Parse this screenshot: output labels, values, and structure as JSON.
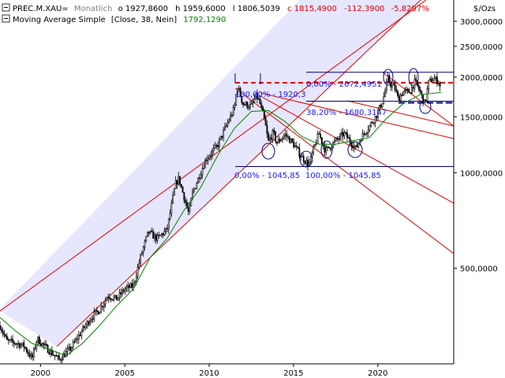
{
  "header": {
    "symbol": "PREC.M.XAU=",
    "period": "Monatlich",
    "open": "o 1927,8600",
    "high": "h 1959,6000",
    "low": "l 1806,5039",
    "close": "c 1815,4900",
    "change": "-112,3900",
    "change_pct": "-5,8297%",
    "ma_label": "Moving Average Simple",
    "ma_params": "[Close, 38, Nein]",
    "ma_value": "1792,1290"
  },
  "colors": {
    "up": "#000000",
    "down": "#000000",
    "ma": "#008000",
    "channel": "#e00000",
    "channel_fill": "#e6e6ff",
    "fib": "#1a1aff",
    "change": "#e00000",
    "ma_text": "#008000"
  },
  "chart_data": {
    "type": "candlestick",
    "title": "PREC.M.XAU= Monatlich",
    "y_unit": "$/Ozs",
    "y_scale": "log",
    "ylim": [
      250,
      3500
    ],
    "xlim": [
      1997.6,
      2024.5
    ],
    "x_ticks": [
      {
        "value": 2000,
        "label": "2000"
      },
      {
        "value": 2005,
        "label": "2005"
      },
      {
        "value": 2010,
        "label": "2010"
      },
      {
        "value": 2015,
        "label": "2015"
      },
      {
        "value": 2020,
        "label": "2020"
      }
    ],
    "y_ticks": [
      {
        "value": 3000,
        "label": "3000,0000"
      },
      {
        "value": 2500,
        "label": "2500,0000"
      },
      {
        "value": 2000,
        "label": "2000,0000"
      },
      {
        "value": 1500,
        "label": "1500,0000"
      },
      {
        "value": 1000,
        "label": "1000,0000"
      },
      {
        "value": 500,
        "label": "500,0000"
      }
    ],
    "close_anchors": [
      [
        1997.6,
        330
      ],
      [
        1998.0,
        295
      ],
      [
        1998.6,
        290
      ],
      [
        1999.0,
        285
      ],
      [
        1999.5,
        260
      ],
      [
        1999.8,
        300
      ],
      [
        2000.2,
        285
      ],
      [
        2001.1,
        258
      ],
      [
        2001.8,
        280
      ],
      [
        2002.5,
        320
      ],
      [
        2003.0,
        350
      ],
      [
        2003.5,
        370
      ],
      [
        2004.0,
        410
      ],
      [
        2004.5,
        400
      ],
      [
        2005.0,
        430
      ],
      [
        2005.5,
        440
      ],
      [
        2006.0,
        560
      ],
      [
        2006.4,
        650
      ],
      [
        2006.9,
        620
      ],
      [
        2007.5,
        660
      ],
      [
        2008.0,
        920
      ],
      [
        2008.2,
        960
      ],
      [
        2008.8,
        740
      ],
      [
        2009.0,
        860
      ],
      [
        2009.8,
        1100
      ],
      [
        2010.5,
        1220
      ],
      [
        2011.0,
        1400
      ],
      [
        2011.5,
        1600
      ],
      [
        2011.67,
        1880
      ],
      [
        2012.0,
        1650
      ],
      [
        2012.5,
        1620
      ],
      [
        2012.8,
        1750
      ],
      [
        2013.0,
        1660
      ],
      [
        2013.3,
        1450
      ],
      [
        2013.5,
        1250
      ],
      [
        2013.8,
        1340
      ],
      [
        2014.0,
        1240
      ],
      [
        2014.5,
        1320
      ],
      [
        2015.0,
        1230
      ],
      [
        2015.5,
        1120
      ],
      [
        2015.9,
        1060
      ],
      [
        2016.5,
        1330
      ],
      [
        2016.9,
        1170
      ],
      [
        2017.5,
        1260
      ],
      [
        2018.0,
        1330
      ],
      [
        2018.5,
        1230
      ],
      [
        2018.7,
        1190
      ],
      [
        2019.0,
        1290
      ],
      [
        2019.5,
        1400
      ],
      [
        2019.9,
        1510
      ],
      [
        2020.3,
        1690
      ],
      [
        2020.6,
        1980
      ],
      [
        2020.8,
        1880
      ],
      [
        2021.0,
        1860
      ],
      [
        2021.2,
        1710
      ],
      [
        2021.5,
        1800
      ],
      [
        2021.9,
        1800
      ],
      [
        2022.2,
        1940
      ],
      [
        2022.5,
        1800
      ],
      [
        2022.8,
        1640
      ],
      [
        2023.0,
        1920
      ],
      [
        2023.3,
        1980
      ],
      [
        2023.6,
        1940
      ],
      [
        2023.75,
        1816
      ]
    ],
    "moving_average": {
      "name": "Moving Average Simple [Close, 38, Nein]",
      "points": [
        [
          1997.6,
          350
        ],
        [
          1998.5,
          318
        ],
        [
          1999.5,
          290
        ],
        [
          2000.5,
          278
        ],
        [
          2001.5,
          265
        ],
        [
          2002.5,
          290
        ],
        [
          2003.5,
          330
        ],
        [
          2004.5,
          380
        ],
        [
          2005.5,
          430
        ],
        [
          2006.5,
          540
        ],
        [
          2007.5,
          620
        ],
        [
          2008.5,
          760
        ],
        [
          2009.5,
          900
        ],
        [
          2010.5,
          1130
        ],
        [
          2011.5,
          1380
        ],
        [
          2012.5,
          1560
        ],
        [
          2013.5,
          1570
        ],
        [
          2014.5,
          1450
        ],
        [
          2015.5,
          1300
        ],
        [
          2016.5,
          1230
        ],
        [
          2017.5,
          1230
        ],
        [
          2018.5,
          1260
        ],
        [
          2019.5,
          1290
        ],
        [
          2020.5,
          1480
        ],
        [
          2021.5,
          1650
        ],
        [
          2022.5,
          1760
        ],
        [
          2023.75,
          1792.13
        ]
      ]
    },
    "fibonacci": [
      {
        "label": "0,00% - 2072,4951",
        "value": 2072.4951
      },
      {
        "label": "100,00% - 1920,3",
        "value": 1920.3
      },
      {
        "label": "38,20% - 1680,3147",
        "value": 1680.3147
      },
      {
        "label": "0,00% - 1045,85",
        "value": 1045.85
      },
      {
        "label": "100,00% - 1045,85",
        "value": 1045.85
      }
    ]
  }
}
